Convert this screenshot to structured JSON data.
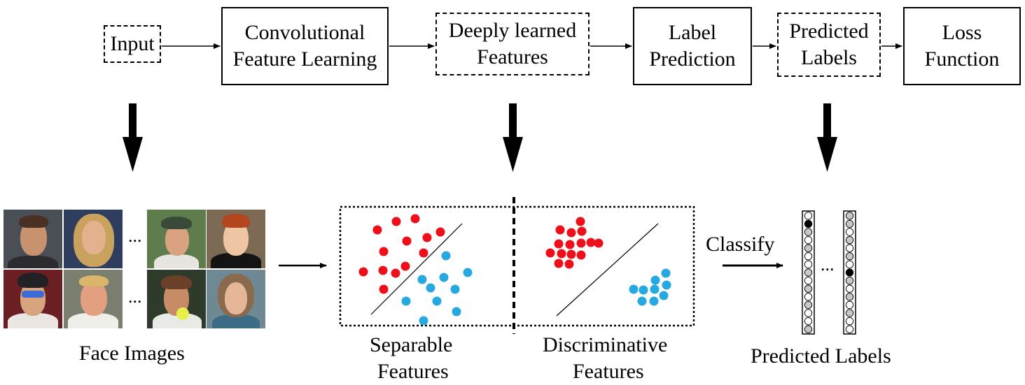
{
  "pipeline": {
    "input": "Input",
    "conv_line1": "Convolutional",
    "conv_line2": "Feature Learning",
    "deep_line1": "Deeply learned",
    "deep_line2": "Features",
    "label_line1": "Label",
    "label_line2": "Prediction",
    "pred_line1": "Predicted",
    "pred_line2": "Labels",
    "loss_line1": "Loss",
    "loss_line2": "Function"
  },
  "bottom": {
    "face_images": "Face Images",
    "separable_line1": "Separable",
    "separable_line2": "Features",
    "discriminative_line1": "Discriminative",
    "discriminative_line2": "Features",
    "classify": "Classify",
    "predicted_labels": "Predicted Labels",
    "ellipsis": "..."
  },
  "colors": {
    "class_a": "#ee0f1a",
    "class_b": "#27a8e1",
    "cell_gray": "#c8c8c8",
    "cell_white": "#ffffff",
    "cell_black": "#000000"
  },
  "label_columns": [
    [
      "w",
      "b",
      "g",
      "w",
      "g",
      "w",
      "w",
      "g",
      "w",
      "g",
      "w",
      "g",
      "w",
      "w",
      "g"
    ],
    [
      "g",
      "g",
      "w",
      "g",
      "w",
      "g",
      "w",
      "b",
      "g",
      "w",
      "g",
      "w",
      "g",
      "w",
      "w"
    ]
  ]
}
